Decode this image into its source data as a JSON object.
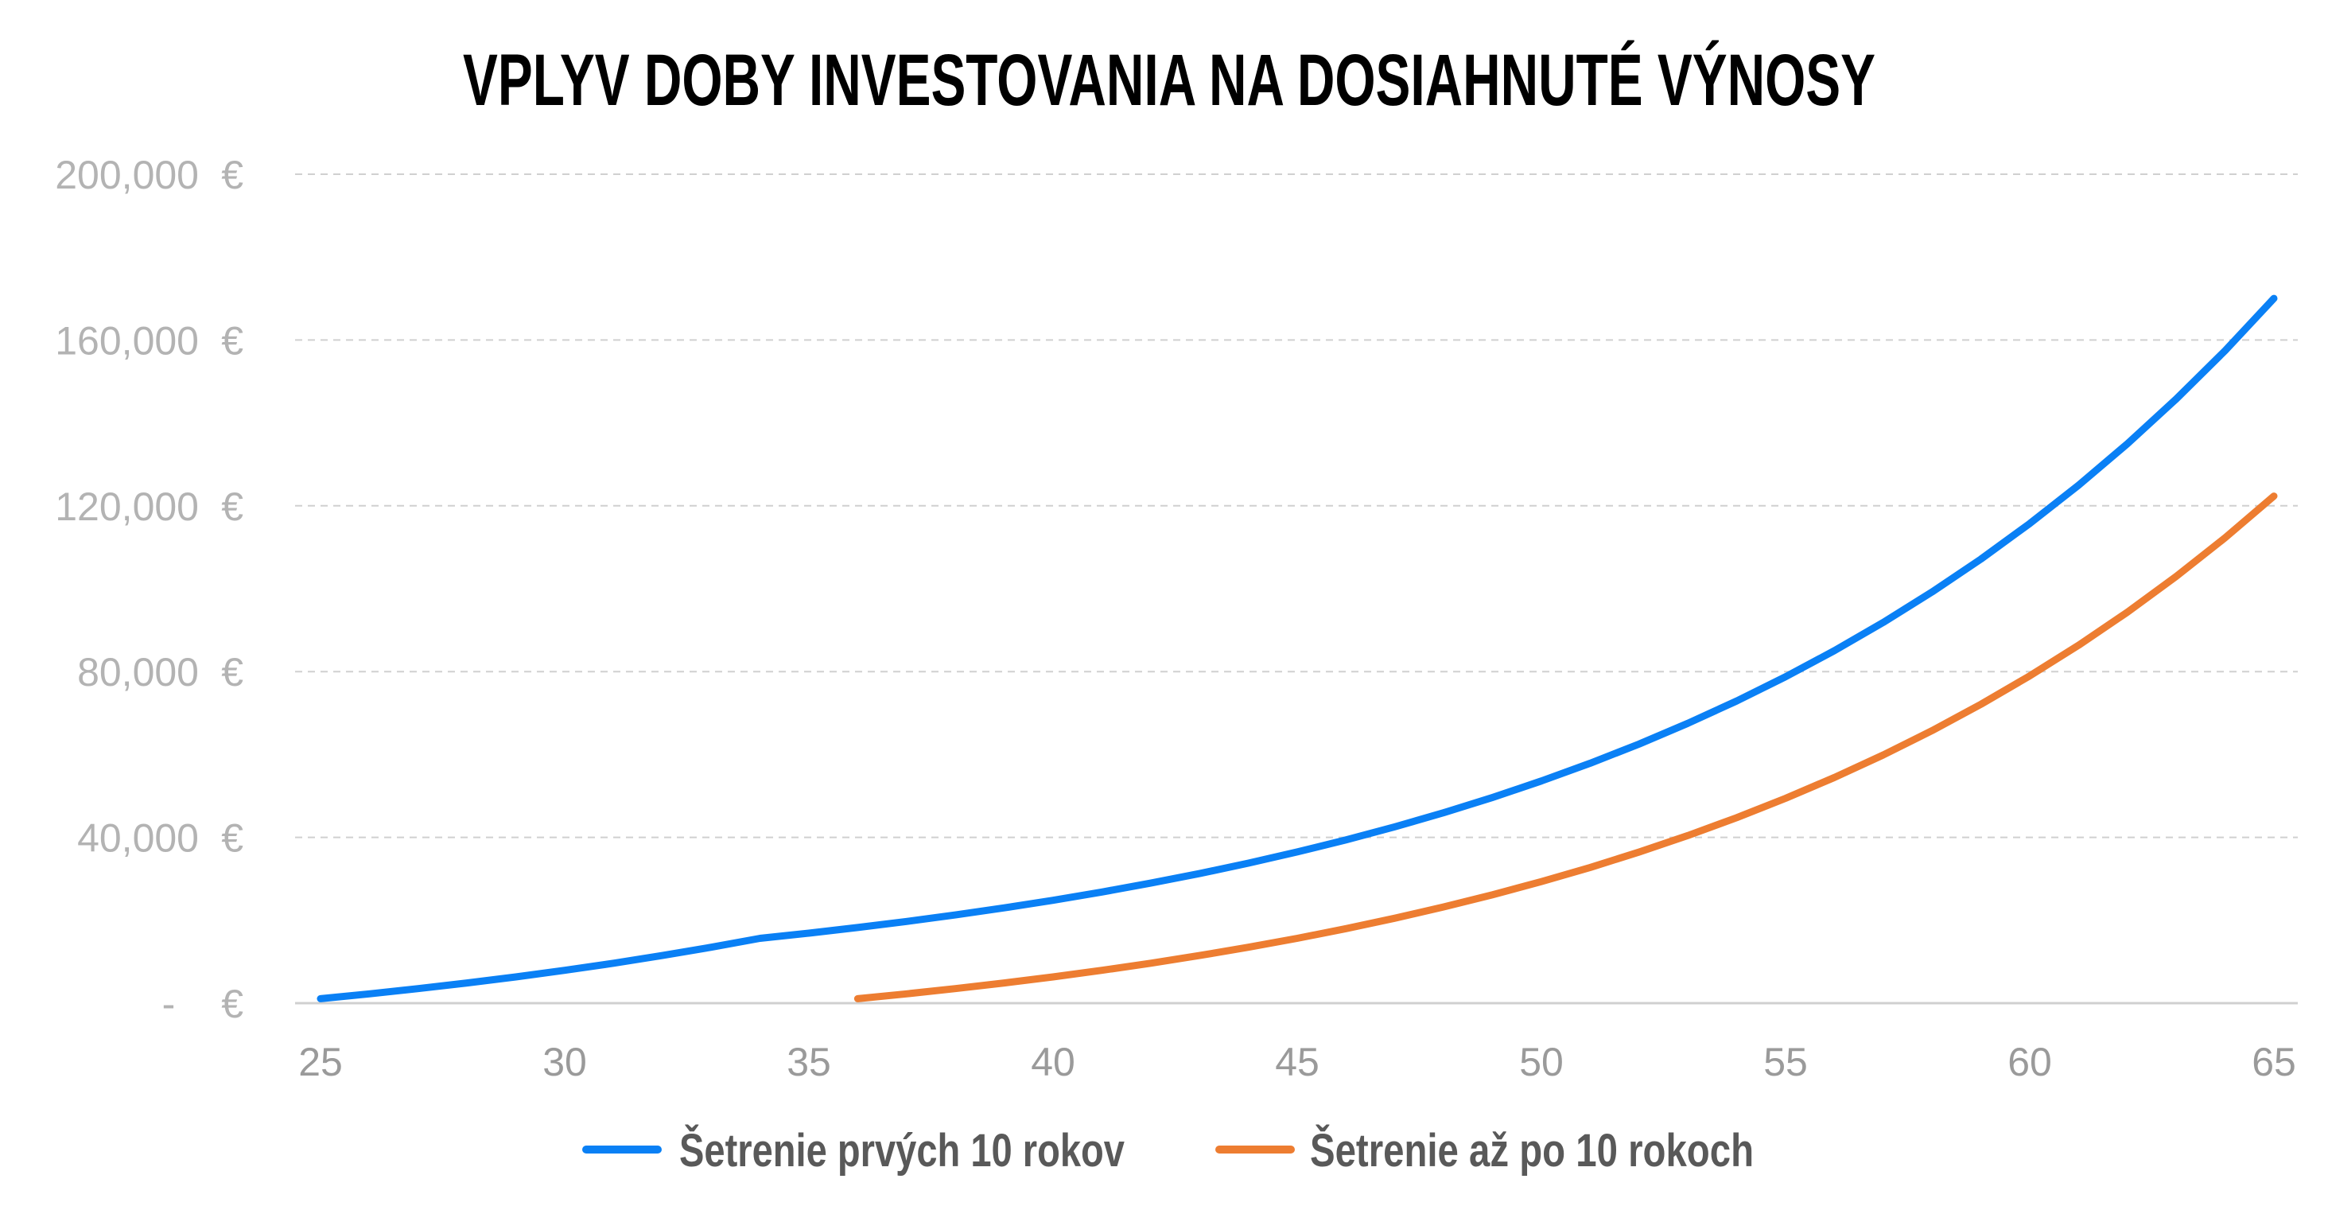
{
  "chart_data": {
    "type": "line",
    "title": "VPLYV DOBY INVESTOVANIA NA DOSIAHNUTÉ VÝNOSY",
    "xlabel": "",
    "ylabel": "",
    "xlim": [
      25,
      65
    ],
    "ylim": [
      0,
      200000
    ],
    "grid": true,
    "legend_position": "bottom-center",
    "y_ticks": [
      {
        "value": 0,
        "label": "-",
        "currency": "€"
      },
      {
        "value": 40000,
        "label": "40,000",
        "currency": "€"
      },
      {
        "value": 80000,
        "label": "80,000",
        "currency": "€"
      },
      {
        "value": 120000,
        "label": "120,000",
        "currency": "€"
      },
      {
        "value": 160000,
        "label": "160,000",
        "currency": "€"
      },
      {
        "value": 200000,
        "label": "200,000",
        "currency": "€"
      }
    ],
    "x_ticks": [
      "25",
      "30",
      "35",
      "40",
      "45",
      "50",
      "55",
      "60",
      "65"
    ],
    "series": [
      {
        "name": "Šetrenie prvých 10 rokov",
        "color": "#0a80f5",
        "x": [
          25,
          26,
          27,
          28,
          29,
          30,
          31,
          32,
          33,
          34,
          35,
          36,
          37,
          38,
          39,
          40,
          41,
          42,
          43,
          44,
          45,
          46,
          47,
          48,
          49,
          50,
          51,
          52,
          53,
          54,
          55,
          56,
          57,
          58,
          59,
          60,
          61,
          62,
          63,
          64,
          65
        ],
        "values": [
          1080,
          2246,
          3506,
          4867,
          6336,
          7923,
          9637,
          11488,
          13487,
          15645,
          16897,
          18249,
          19709,
          21285,
          22988,
          24827,
          26814,
          28959,
          31276,
          33778,
          36480,
          39398,
          42550,
          45954,
          49630,
          53600,
          57888,
          62519,
          67521,
          72923,
          78757,
          85057,
          91862,
          99211,
          107148,
          115720,
          124977,
          134975,
          145773,
          157435,
          170030
        ]
      },
      {
        "name": "Šetrenie až po 10 rokoch",
        "color": "#ed7d31",
        "x": [
          36,
          37,
          38,
          39,
          40,
          41,
          42,
          43,
          44,
          45,
          46,
          47,
          48,
          49,
          50,
          51,
          52,
          53,
          54,
          55,
          56,
          57,
          58,
          59,
          60,
          61,
          62,
          63,
          64,
          65
        ],
        "values": [
          1080,
          2246,
          3506,
          4867,
          6336,
          7923,
          9637,
          11488,
          13487,
          15645,
          17977,
          20495,
          23215,
          26152,
          29324,
          32750,
          36450,
          40446,
          44762,
          49423,
          54457,
          59894,
          65766,
          72107,
          78956,
          86352,
          94340,
          102967,
          112284,
          122347
        ]
      }
    ]
  }
}
